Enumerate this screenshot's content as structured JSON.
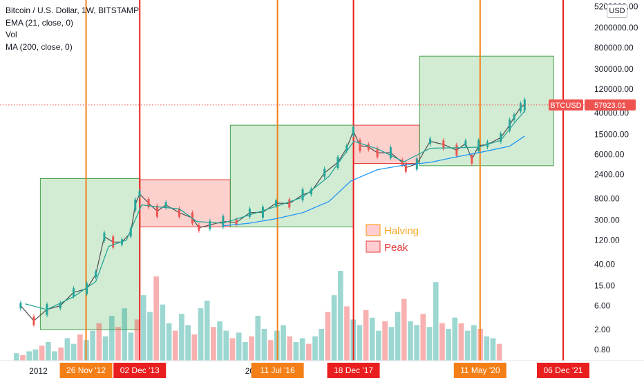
{
  "header": {
    "title": "Bitcoin / U.S. Dollar, 1W, BITSTAMP",
    "indicators": [
      "EMA (21, close, 0)",
      "Vol",
      "MA (200, close, 0)"
    ],
    "currency_button": "USD"
  },
  "chart_data": {
    "type": "line",
    "scale": "log",
    "ylim": [
      0.55,
      6000000
    ],
    "y_ticks": [
      "5200000.00",
      "2000000.00",
      "800000.00",
      "300000.00",
      "120000.00",
      "40000.00",
      "15000.00",
      "6000.00",
      "2400.00",
      "800.00",
      "300.00",
      "120.00",
      "40.00",
      "15.00",
      "6.00",
      "2.00",
      "0.80"
    ],
    "y_tick_values": [
      5200000,
      2000000,
      800000,
      300000,
      120000,
      40000,
      15000,
      6000,
      2400,
      800,
      300,
      120,
      40,
      15,
      6,
      2,
      0.8
    ],
    "x_labels": [
      "2012",
      "20"
    ],
    "x_label_dates": [
      "2012-01-01",
      "2016-01-01"
    ],
    "last_price": {
      "label": "BTCUSD",
      "value": "57923.01",
      "color": "#ef5350"
    },
    "series": [
      {
        "type": "candlestick",
        "color_up": "#26a69a",
        "color_down": "#ef5350",
        "points": [
          [
            "2011-09-01",
            6
          ],
          [
            "2011-12-01",
            3
          ],
          [
            "2012-03-01",
            5
          ],
          [
            "2012-06-01",
            6
          ],
          [
            "2012-09-01",
            11
          ],
          [
            "2012-12-01",
            13
          ],
          [
            "2013-02-01",
            25
          ],
          [
            "2013-04-01",
            140
          ],
          [
            "2013-06-01",
            110
          ],
          [
            "2013-08-01",
            110
          ],
          [
            "2013-10-01",
            170
          ],
          [
            "2013-11-01",
            600
          ],
          [
            "2013-12-01",
            1000
          ],
          [
            "2014-02-01",
            650
          ],
          [
            "2014-04-01",
            450
          ],
          [
            "2014-06-01",
            600
          ],
          [
            "2014-09-01",
            420
          ],
          [
            "2014-12-01",
            330
          ],
          [
            "2015-01-15",
            210
          ],
          [
            "2015-04-01",
            240
          ],
          [
            "2015-07-01",
            280
          ],
          [
            "2015-10-01",
            270
          ],
          [
            "2016-01-01",
            420
          ],
          [
            "2016-04-01",
            430
          ],
          [
            "2016-07-01",
            650
          ],
          [
            "2016-10-01",
            640
          ],
          [
            "2017-01-01",
            950
          ],
          [
            "2017-03-01",
            1100
          ],
          [
            "2017-06-01",
            2600
          ],
          [
            "2017-09-01",
            4200
          ],
          [
            "2017-11-01",
            8000
          ],
          [
            "2017-12-17",
            17500
          ],
          [
            "2018-02-01",
            9000
          ],
          [
            "2018-04-01",
            8500
          ],
          [
            "2018-06-01",
            6500
          ],
          [
            "2018-09-01",
            6500
          ],
          [
            "2018-11-20",
            4200
          ],
          [
            "2018-12-15",
            3300
          ],
          [
            "2019-03-01",
            3900
          ],
          [
            "2019-06-01",
            11000
          ],
          [
            "2019-09-01",
            9500
          ],
          [
            "2019-12-01",
            7300
          ],
          [
            "2020-02-01",
            10000
          ],
          [
            "2020-03-15",
            4800
          ],
          [
            "2020-05-01",
            9000
          ],
          [
            "2020-07-01",
            9500
          ],
          [
            "2020-10-01",
            13000
          ],
          [
            "2020-12-01",
            23000
          ],
          [
            "2021-01-01",
            33000
          ],
          [
            "2021-02-15",
            52000
          ],
          [
            "2021-03-15",
            57923
          ]
        ]
      },
      {
        "type": "line",
        "color": "#26a69a",
        "points": [
          [
            "2011-10-01",
            6.5
          ],
          [
            "2012-03-01",
            5
          ],
          [
            "2012-09-01",
            9
          ],
          [
            "2013-02-01",
            18
          ],
          [
            "2013-05-01",
            90
          ],
          [
            "2013-09-01",
            120
          ],
          [
            "2013-12-15",
            600
          ],
          [
            "2014-04-01",
            550
          ],
          [
            "2014-09-01",
            500
          ],
          [
            "2015-01-01",
            280
          ],
          [
            "2015-07-01",
            260
          ],
          [
            "2016-01-01",
            380
          ],
          [
            "2016-07-01",
            560
          ],
          [
            "2017-01-01",
            850
          ],
          [
            "2017-07-01",
            2200
          ],
          [
            "2017-12-20",
            11000
          ],
          [
            "2018-06-01",
            7800
          ],
          [
            "2018-12-01",
            4300
          ],
          [
            "2019-06-01",
            8000
          ],
          [
            "2019-12-01",
            8200
          ],
          [
            "2020-05-01",
            8400
          ],
          [
            "2020-10-01",
            11500
          ],
          [
            "2021-01-01",
            25000
          ],
          [
            "2021-03-15",
            44000
          ]
        ]
      },
      {
        "type": "line",
        "color": "#2196f3",
        "points": [
          [
            "2015-07-01",
            230
          ],
          [
            "2016-01-01",
            260
          ],
          [
            "2016-07-01",
            320
          ],
          [
            "2017-01-01",
            420
          ],
          [
            "2017-07-01",
            700
          ],
          [
            "2017-12-01",
            1800
          ],
          [
            "2018-06-01",
            3000
          ],
          [
            "2018-12-01",
            3700
          ],
          [
            "2019-06-01",
            4200
          ],
          [
            "2019-12-01",
            5400
          ],
          [
            "2020-06-01",
            6800
          ],
          [
            "2020-12-01",
            8800
          ],
          [
            "2021-03-15",
            14000
          ]
        ]
      },
      {
        "type": "histogram",
        "values": [
          0.4,
          0.3,
          0.5,
          0.6,
          0.8,
          1.0,
          0.5,
          0.7,
          1.2,
          0.9,
          1.4,
          1.1,
          1.6,
          2.0,
          1.3,
          2.4,
          1.8,
          2.8,
          1.5,
          2.2,
          3.5,
          2.6,
          4.5,
          3.0,
          2.0,
          1.6,
          2.5,
          1.9,
          1.4,
          2.8,
          3.2,
          1.8,
          2.1,
          1.6,
          1.2,
          1.5,
          1.0,
          1.3,
          2.4,
          1.7,
          1.1,
          1.6,
          1.9,
          1.3,
          1.0,
          1.2,
          0.9,
          1.3,
          1.7,
          2.6,
          3.5,
          4.8,
          2.9,
          2.2,
          1.9,
          2.7,
          2.3,
          1.6,
          2.1,
          1.8,
          2.6,
          3.3,
          2.1,
          1.9,
          2.5,
          1.8,
          4.2,
          2.0,
          1.7,
          2.3,
          2.0,
          1.6,
          1.9,
          1.7,
          1.3,
          1.2,
          0.9
        ]
      }
    ],
    "zones": [
      {
        "kind": "green",
        "from": "2012-01-15",
        "to": "2013-12-04",
        "top": 2000,
        "bottom": 2
      },
      {
        "kind": "red",
        "from": "2013-12-04",
        "to": "2015-08-20",
        "top": 1900,
        "bottom": 220
      },
      {
        "kind": "green",
        "from": "2015-08-20",
        "to": "2017-12-18",
        "top": 23000,
        "bottom": 220
      },
      {
        "kind": "red",
        "from": "2017-12-18",
        "to": "2019-03-20",
        "top": 23000,
        "bottom": 4000
      },
      {
        "kind": "green",
        "from": "2019-03-20",
        "to": "2021-10-01",
        "top": 540000,
        "bottom": 3600
      }
    ],
    "events": [
      {
        "kind": "halving",
        "date": "2012-11-26",
        "label": "26 Nov '12",
        "color": "#f57f17"
      },
      {
        "kind": "peak",
        "date": "2013-12-02",
        "label": "02 Dec '13",
        "color": "#e91e1e"
      },
      {
        "kind": "halving",
        "date": "2016-07-11",
        "label": "11 Jul '16",
        "color": "#f57f17"
      },
      {
        "kind": "peak",
        "date": "2017-12-18",
        "label": "18 Dec '17",
        "color": "#e91e1e"
      },
      {
        "kind": "halving",
        "date": "2020-05-11",
        "label": "11 May '20",
        "color": "#f57f17"
      },
      {
        "kind": "peak",
        "date": "2021-12-06",
        "label": "06 Dec '21",
        "color": "#e91e1e"
      }
    ],
    "legend": [
      {
        "label": "Halving",
        "fill": "#ffcdd2",
        "border": "#ff9800",
        "text_color": "#f5a623"
      },
      {
        "label": "Peak",
        "fill": "#ffcdd2",
        "border": "#e53935",
        "text_color": "#e53935"
      }
    ]
  }
}
